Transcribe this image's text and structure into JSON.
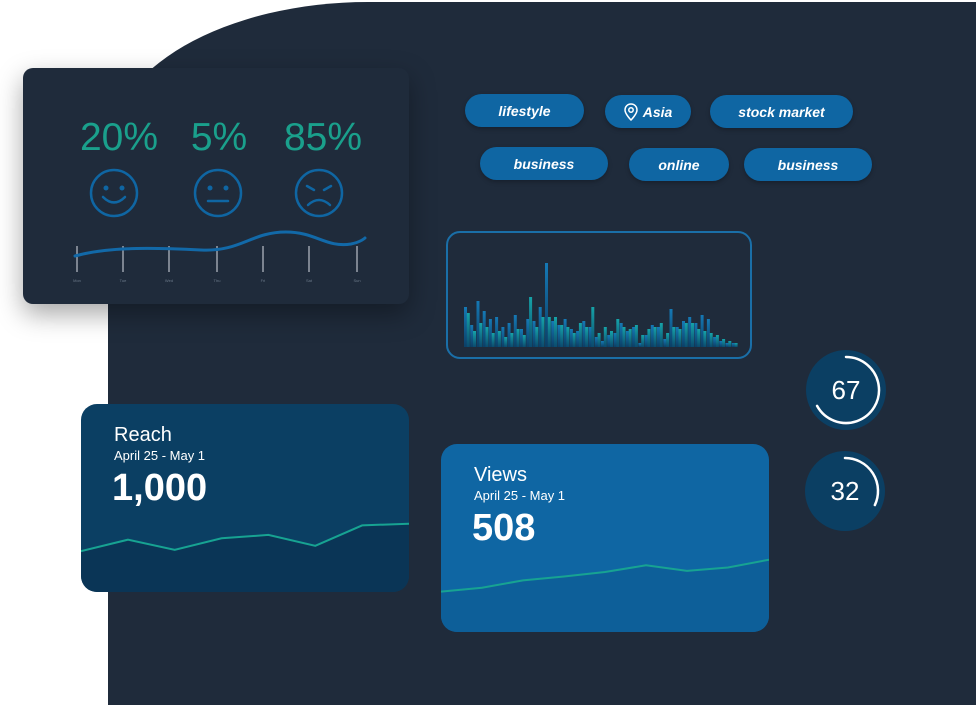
{
  "sentiment": {
    "positive_pct": "20%",
    "neutral_pct": "5%",
    "negative_pct": "85%",
    "faces": [
      "smile-icon",
      "neutral-face-icon",
      "sad-face-icon"
    ],
    "days": [
      "Mon",
      "Tue",
      "Wed",
      "Thu",
      "Fri",
      "Sat",
      "Sun"
    ]
  },
  "tags": [
    "lifestyle",
    "Asia",
    "stock market",
    "business",
    "online",
    "business"
  ],
  "tag_location_icon": "location-pin-icon",
  "bar_chart": {
    "chart_data": {
      "type": "bar",
      "series": [
        {
          "values": [
            40,
            22,
            46,
            36,
            28,
            30,
            20,
            24,
            32,
            18,
            28,
            26,
            40,
            84,
            26,
            22,
            28,
            18,
            16,
            26,
            20,
            10,
            6,
            12,
            14,
            24,
            16,
            20,
            4,
            12,
            22,
            20,
            8,
            38,
            20,
            26,
            30,
            24,
            32,
            28,
            10,
            6,
            4,
            4
          ]
        },
        {
          "values": [
            34,
            16,
            24,
            20,
            14,
            16,
            10,
            14,
            18,
            12,
            50,
            20,
            30,
            30,
            30,
            22,
            20,
            14,
            24,
            20,
            40,
            14,
            20,
            16,
            28,
            20,
            18,
            22,
            12,
            18,
            20,
            24,
            14,
            20,
            18,
            24,
            24,
            18,
            16,
            14,
            12,
            8,
            6,
            4
          ]
        }
      ]
    }
  },
  "circles": [
    {
      "value": "67",
      "progress": 0.67
    },
    {
      "value": "32",
      "progress": 0.32
    }
  ],
  "reach": {
    "title": "Reach",
    "range": "April 25 - May 1",
    "value": "1,000",
    "line": [
      0.14,
      0.48,
      0.18,
      0.52,
      0.62,
      0.3,
      0.9,
      0.95
    ]
  },
  "views": {
    "title": "Views",
    "range": "April 25 - May 1",
    "value": "508",
    "line": [
      0.15,
      0.22,
      0.35,
      0.42,
      0.5,
      0.62,
      0.52,
      0.58,
      0.72
    ]
  },
  "colors": {
    "background": "#1f2b3b",
    "accent": "#1aa08c",
    "primary": "#0f66a3",
    "dark_card": "#0b3f63"
  }
}
